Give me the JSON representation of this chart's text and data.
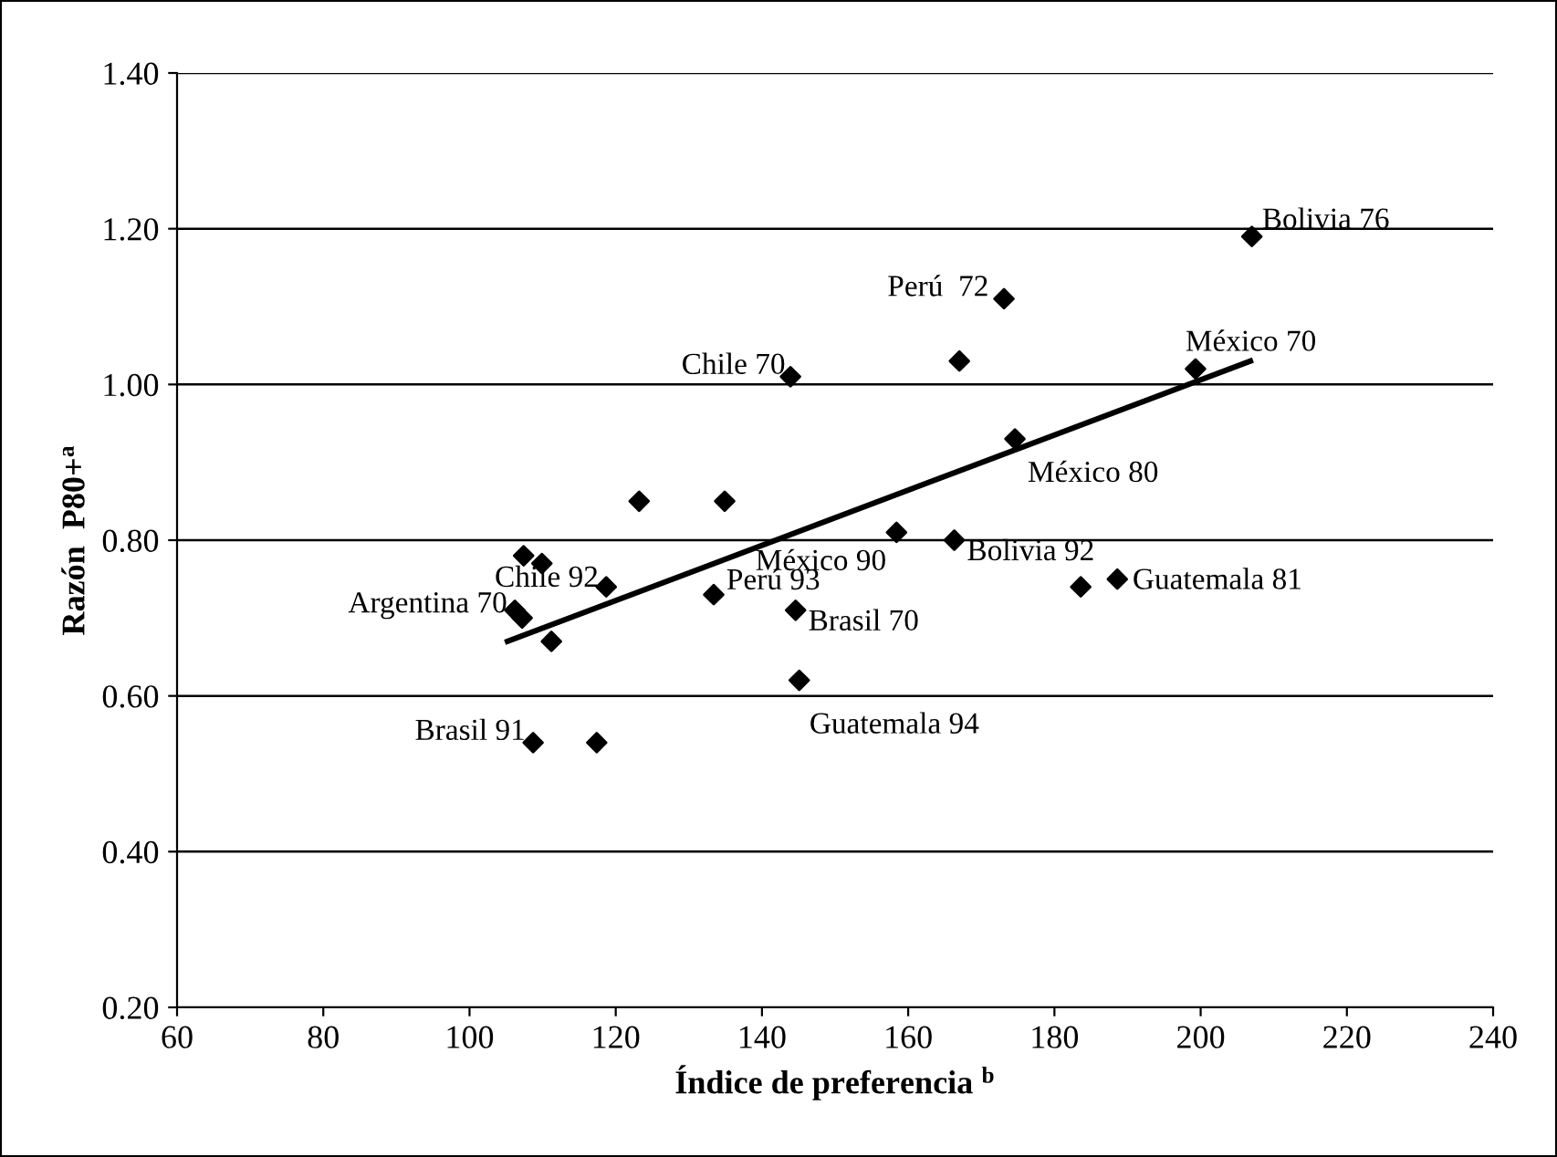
{
  "chart_data": {
    "type": "scatter",
    "xlabel": "Índice de preferencia $^{b}$",
    "ylabel": "Razón  P80+$^{a}$",
    "xlim": [
      60,
      240
    ],
    "xticks": [
      60,
      80,
      100,
      120,
      140,
      160,
      180,
      200,
      220,
      240
    ],
    "ylim": [
      0.2,
      1.4
    ],
    "yticks": [
      {
        "value": 0.2,
        "label": "0.20"
      },
      {
        "value": 0.4,
        "label": "0.40"
      },
      {
        "value": 0.6,
        "label": "0.60"
      },
      {
        "value": 0.8,
        "label": "0.80"
      },
      {
        "value": 1.0,
        "label": "1.00"
      },
      {
        "value": 1.2,
        "label": "1.20"
      },
      {
        "value": 1.4,
        "label": "1.40"
      }
    ],
    "grid": "y",
    "legend": false,
    "series": [
      {
        "type": "scatter",
        "marker": "diamond",
        "color": "#000000",
        "x": [
          207,
          173.1,
          167,
          143.9,
          199.3,
          174.6,
          123.2,
          134.9,
          158.4,
          166.3,
          183.6,
          188.6,
          107.4,
          109.9,
          118.7,
          133.4,
          144.6,
          106.2,
          107.2,
          111.2,
          145.1,
          108.7,
          117.4
        ],
        "values": [
          1.19,
          1.11,
          1.03,
          1.01,
          1.02,
          0.93,
          0.85,
          0.85,
          0.81,
          0.8,
          0.74,
          0.75,
          0.78,
          0.77,
          0.74,
          0.73,
          0.71,
          0.71,
          0.7,
          0.67,
          0.62,
          0.54,
          0.54
        ]
      },
      {
        "type": "line",
        "color": "#000000",
        "line_style": "solid",
        "x": [
          105.2,
          206.8
        ],
        "values": [
          0.67,
          1.03
        ]
      }
    ],
    "annotations": [
      {
        "text": "Bolivia 76",
        "x": 207,
        "y": 1.19
      },
      {
        "text": "Perú  72",
        "x": 173.1,
        "y": 1.11
      },
      {
        "text": "Chile 70",
        "x": 143.9,
        "y": 1.01
      },
      {
        "text": "México 70",
        "x": 199.3,
        "y": 1.02
      },
      {
        "text": "México 80",
        "x": 174.6,
        "y": 0.93
      },
      {
        "text": "México 90",
        "x": 158.4,
        "y": 0.81
      },
      {
        "text": "Bolivia 92",
        "x": 166.3,
        "y": 0.8
      },
      {
        "text": "Guatemala 81",
        "x": 188.6,
        "y": 0.75
      },
      {
        "text": "Chile 92",
        "x": 118.7,
        "y": 0.74
      },
      {
        "text": "Perú 93",
        "x": 133.4,
        "y": 0.73
      },
      {
        "text": "Brasil 70",
        "x": 144.6,
        "y": 0.71
      },
      {
        "text": "Argentina 70",
        "x": 106.2,
        "y": 0.71
      },
      {
        "text": "Guatemala 94",
        "x": 145.1,
        "y": 0.62
      },
      {
        "text": "Brasil 91",
        "x": 108.7,
        "y": 0.54
      }
    ]
  }
}
